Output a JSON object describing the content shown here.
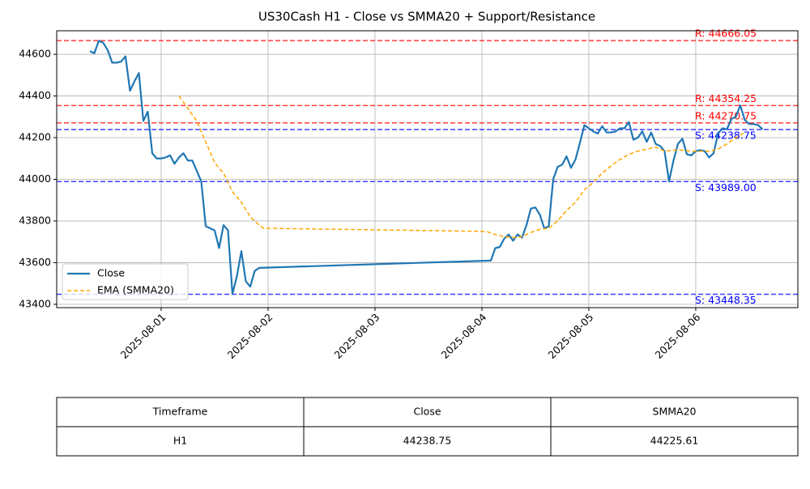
{
  "chart_data": {
    "type": "line",
    "title": "US30Cash H1 - Close vs SMMA20 + Support/Resistance",
    "xlim": [
      "2025-07-31 00:33",
      "2025-08-06 22:55"
    ],
    "xticks": [
      "2025-08-01",
      "2025-08-02",
      "2025-08-03",
      "2025-08-04",
      "2025-08-05",
      "2025-08-06"
    ],
    "ylim": [
      43384,
      44713
    ],
    "yticks": [
      43400,
      43600,
      43800,
      44000,
      44200,
      44400,
      44600
    ],
    "grid": true,
    "legend": "lower left",
    "series": [
      {
        "name": "Close",
        "color": "#1f77b4",
        "dash": false,
        "x": [
          "2025-07-31 08:00",
          "2025-07-31 09:00",
          "2025-07-31 10:00",
          "2025-07-31 11:00",
          "2025-07-31 12:00",
          "2025-07-31 13:00",
          "2025-07-31 14:00",
          "2025-07-31 15:00",
          "2025-07-31 16:00",
          "2025-07-31 17:00",
          "2025-07-31 18:00",
          "2025-07-31 19:00",
          "2025-07-31 20:00",
          "2025-07-31 21:00",
          "2025-07-31 22:00",
          "2025-07-31 23:00",
          "2025-08-01 00:00",
          "2025-08-01 01:00",
          "2025-08-01 02:00",
          "2025-08-01 03:00",
          "2025-08-01 04:00",
          "2025-08-01 05:00",
          "2025-08-01 06:00",
          "2025-08-01 07:00",
          "2025-08-01 08:00",
          "2025-08-01 09:00",
          "2025-08-01 10:00",
          "2025-08-01 11:00",
          "2025-08-01 12:00",
          "2025-08-01 13:00",
          "2025-08-01 14:00",
          "2025-08-01 15:00",
          "2025-08-01 16:00",
          "2025-08-01 17:00",
          "2025-08-01 18:00",
          "2025-08-01 19:00",
          "2025-08-01 20:00",
          "2025-08-01 21:00",
          "2025-08-01 22:00",
          "2025-08-04 02:00",
          "2025-08-04 03:00",
          "2025-08-04 04:00",
          "2025-08-04 05:00",
          "2025-08-04 06:00",
          "2025-08-04 07:00",
          "2025-08-04 08:00",
          "2025-08-04 09:00",
          "2025-08-04 10:00",
          "2025-08-04 11:00",
          "2025-08-04 12:00",
          "2025-08-04 13:00",
          "2025-08-04 14:00",
          "2025-08-04 15:00",
          "2025-08-04 16:00",
          "2025-08-04 17:00",
          "2025-08-04 18:00",
          "2025-08-04 19:00",
          "2025-08-04 20:00",
          "2025-08-04 21:00",
          "2025-08-04 22:00",
          "2025-08-04 23:00",
          "2025-08-05 00:00",
          "2025-08-05 01:00",
          "2025-08-05 02:00",
          "2025-08-05 03:00",
          "2025-08-05 04:00",
          "2025-08-05 05:00",
          "2025-08-05 06:00",
          "2025-08-05 07:00",
          "2025-08-05 08:00",
          "2025-08-05 09:00",
          "2025-08-05 10:00",
          "2025-08-05 11:00",
          "2025-08-05 12:00",
          "2025-08-05 13:00",
          "2025-08-05 14:00",
          "2025-08-05 15:00",
          "2025-08-05 16:00",
          "2025-08-05 17:00",
          "2025-08-05 18:00",
          "2025-08-05 19:00",
          "2025-08-05 20:00",
          "2025-08-05 21:00",
          "2025-08-05 22:00",
          "2025-08-05 23:00",
          "2025-08-06 00:00",
          "2025-08-06 01:00",
          "2025-08-06 02:00",
          "2025-08-06 03:00",
          "2025-08-06 04:00",
          "2025-08-06 05:00",
          "2025-08-06 06:00",
          "2025-08-06 07:00",
          "2025-08-06 08:00",
          "2025-08-06 09:00",
          "2025-08-06 10:00",
          "2025-08-06 11:00",
          "2025-08-06 12:00",
          "2025-08-06 13:00",
          "2025-08-06 14:00",
          "2025-08-06 15:00"
        ],
        "values": [
          44615,
          44605,
          44665,
          44655,
          44620,
          44560,
          44560,
          44565,
          44590,
          44425,
          44470,
          44510,
          44280,
          44325,
          44125,
          44100,
          44100,
          44105,
          44115,
          44075,
          44105,
          44125,
          44090,
          44090,
          44040,
          43990,
          43775,
          43765,
          43755,
          43670,
          43780,
          43755,
          43450,
          43535,
          43655,
          43510,
          43485,
          43560,
          43575,
          43610,
          43670,
          43675,
          43715,
          43735,
          43705,
          43735,
          43720,
          43780,
          43860,
          43865,
          43830,
          43765,
          43775,
          44000,
          44060,
          44070,
          44110,
          44055,
          44095,
          44175,
          44260,
          44245,
          44230,
          44220,
          44255,
          44225,
          44225,
          44230,
          44245,
          44245,
          44275,
          44190,
          44200,
          44230,
          44180,
          44225,
          44170,
          44160,
          44135,
          43990,
          44090,
          44170,
          44195,
          44120,
          44115,
          44135,
          44140,
          44135,
          44105,
          44125,
          44220,
          44245,
          44240,
          44290,
          44300,
          44355,
          44285,
          44265,
          44265,
          44260,
          44240
        ]
      },
      {
        "name": "EMA (SMMA20)",
        "color": "orange",
        "dash": true,
        "x": [
          "2025-08-01 04:00",
          "2025-08-01 06:00",
          "2025-08-01 08:00",
          "2025-08-01 10:00",
          "2025-08-01 12:00",
          "2025-08-01 14:00",
          "2025-08-01 16:00",
          "2025-08-01 18:00",
          "2025-08-01 20:00",
          "2025-08-01 22:00",
          "2025-08-01 23:00",
          "2025-08-04 01:00",
          "2025-08-04 03:00",
          "2025-08-04 05:00",
          "2025-08-04 07:00",
          "2025-08-04 09:00",
          "2025-08-04 11:00",
          "2025-08-04 13:00",
          "2025-08-04 15:00",
          "2025-08-04 17:00",
          "2025-08-04 19:00",
          "2025-08-04 21:00",
          "2025-08-04 23:00",
          "2025-08-05 01:00",
          "2025-08-05 03:00",
          "2025-08-05 05:00",
          "2025-08-05 07:00",
          "2025-08-05 09:00",
          "2025-08-05 11:00",
          "2025-08-05 13:00",
          "2025-08-05 15:00",
          "2025-08-05 17:00",
          "2025-08-05 19:00",
          "2025-08-05 21:00",
          "2025-08-05 23:00",
          "2025-08-06 01:00",
          "2025-08-06 03:00",
          "2025-08-06 05:00",
          "2025-08-06 07:00",
          "2025-08-06 09:00",
          "2025-08-06 11:00"
        ],
        "values": [
          44400,
          44340,
          44280,
          44180,
          44080,
          44030,
          43940,
          43890,
          43820,
          43780,
          43765,
          43750,
          43735,
          43725,
          43720,
          43725,
          43745,
          43760,
          43765,
          43800,
          43850,
          43890,
          43950,
          43985,
          44030,
          44065,
          44095,
          44120,
          44135,
          44145,
          44155,
          44135,
          44140,
          44140,
          44135,
          44135,
          44135,
          44145,
          44170,
          44200,
          44225
        ]
      }
    ],
    "levels": [
      {
        "label": "R: 44666.05",
        "value": 44666.05,
        "color": "red"
      },
      {
        "label": "R: 44354.25",
        "value": 44354.25,
        "color": "red"
      },
      {
        "label": "R: 44270.75",
        "value": 44270.75,
        "color": "red"
      },
      {
        "label": "S: 44238.75",
        "value": 44238.75,
        "color": "blue"
      },
      {
        "label": "S: 43989.00",
        "value": 43989,
        "color": "blue"
      },
      {
        "label": "S: 43448.35",
        "value": 43448.35,
        "color": "blue"
      }
    ]
  },
  "table": {
    "header": [
      "Timeframe",
      "Close",
      "SMMA20"
    ],
    "rows": [
      [
        "H1",
        "44238.75",
        "44225.61"
      ]
    ]
  }
}
